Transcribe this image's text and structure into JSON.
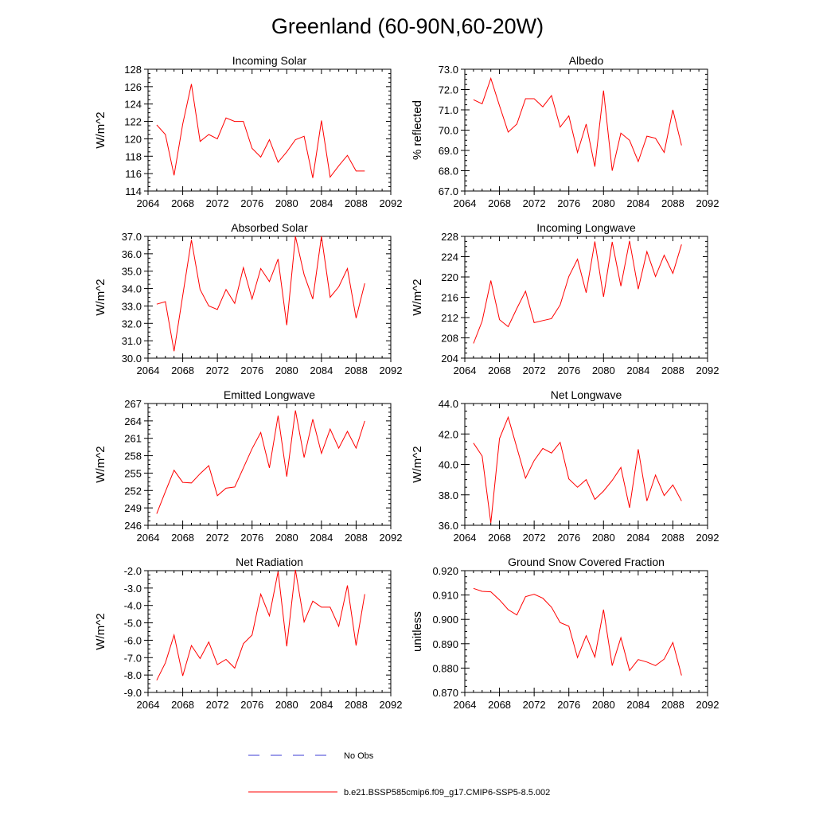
{
  "title": "Greenland (60-90N,60-20W)",
  "legend": {
    "obs_label": "No Obs",
    "model_label": "b.e21.BSSP585cmip6.f09_g17.CMIP6-SSP5-8.5.002",
    "obs_color": "#3b3bd6",
    "model_color": "#ff0000"
  },
  "chart_data": [
    {
      "type": "line",
      "title": "Incoming Solar",
      "ylabel": "W/m^2",
      "xlim": [
        2064,
        2092
      ],
      "ylim": [
        114,
        128
      ],
      "xticks": [
        2064,
        2068,
        2072,
        2076,
        2080,
        2084,
        2088,
        2092
      ],
      "yticks": [
        114,
        116,
        118,
        120,
        122,
        124,
        126,
        128
      ],
      "ytick_labels": [
        "114",
        "116",
        "118",
        "120",
        "122",
        "124",
        "126",
        "128"
      ],
      "x": [
        2065,
        2066,
        2067,
        2068,
        2069,
        2070,
        2071,
        2072,
        2073,
        2074,
        2075,
        2076,
        2077,
        2078,
        2079,
        2080,
        2081,
        2082,
        2083,
        2084,
        2085,
        2086,
        2087,
        2088,
        2089
      ],
      "series": [
        {
          "values": [
            121.6,
            120.5,
            115.8,
            121.7,
            126.3,
            119.7,
            120.5,
            120.0,
            122.4,
            122.0,
            122.0,
            118.9,
            117.9,
            119.9,
            117.3,
            118.5,
            119.9,
            120.3,
            115.5,
            122.1,
            115.6,
            116.9,
            118.1,
            116.3,
            116.3
          ]
        }
      ]
    },
    {
      "type": "line",
      "title": "Albedo",
      "ylabel": "% reflected",
      "xlim": [
        2064,
        2092
      ],
      "ylim": [
        67,
        73
      ],
      "xticks": [
        2064,
        2068,
        2072,
        2076,
        2080,
        2084,
        2088,
        2092
      ],
      "yticks": [
        67,
        68,
        69,
        70,
        71,
        72,
        73
      ],
      "ytick_labels": [
        "67.0",
        "68.0",
        "69.0",
        "70.0",
        "71.0",
        "72.0",
        "73.0"
      ],
      "x": [
        2065,
        2066,
        2067,
        2068,
        2069,
        2070,
        2071,
        2072,
        2073,
        2074,
        2075,
        2076,
        2077,
        2078,
        2079,
        2080,
        2081,
        2082,
        2083,
        2084,
        2085,
        2086,
        2087,
        2088,
        2089
      ],
      "series": [
        {
          "values": [
            71.5,
            71.3,
            72.55,
            71.2,
            69.9,
            70.3,
            71.55,
            71.55,
            71.15,
            71.7,
            70.15,
            70.7,
            68.9,
            70.3,
            68.2,
            71.95,
            68.0,
            69.85,
            69.5,
            68.45,
            69.7,
            69.6,
            68.9,
            71.0,
            69.25
          ]
        }
      ]
    },
    {
      "type": "line",
      "title": "Absorbed Solar",
      "ylabel": "W/m^2",
      "xlim": [
        2064,
        2092
      ],
      "ylim": [
        30,
        37
      ],
      "xticks": [
        2064,
        2068,
        2072,
        2076,
        2080,
        2084,
        2088,
        2092
      ],
      "yticks": [
        30,
        31,
        32,
        33,
        34,
        35,
        36,
        37
      ],
      "ytick_labels": [
        "30.0",
        "31.0",
        "32.0",
        "33.0",
        "34.0",
        "35.0",
        "36.0",
        "37.0"
      ],
      "x": [
        2065,
        2066,
        2067,
        2068,
        2069,
        2070,
        2071,
        2072,
        2073,
        2074,
        2075,
        2076,
        2077,
        2078,
        2079,
        2080,
        2081,
        2082,
        2083,
        2084,
        2085,
        2086,
        2087,
        2088,
        2089
      ],
      "series": [
        {
          "values": [
            33.1,
            33.25,
            30.4,
            33.6,
            36.8,
            33.95,
            33.0,
            32.8,
            33.95,
            33.15,
            35.2,
            33.4,
            35.15,
            34.4,
            35.7,
            31.9,
            37.0,
            34.8,
            33.4,
            37.0,
            33.5,
            34.1,
            35.15,
            32.3,
            34.3
          ]
        }
      ]
    },
    {
      "type": "line",
      "title": "Incoming Longwave",
      "ylabel": "W/m^2",
      "xlim": [
        2064,
        2092
      ],
      "ylim": [
        204,
        228
      ],
      "xticks": [
        2064,
        2068,
        2072,
        2076,
        2080,
        2084,
        2088,
        2092
      ],
      "yticks": [
        204,
        208,
        212,
        216,
        220,
        224,
        228
      ],
      "ytick_labels": [
        "204",
        "208",
        "212",
        "216",
        "220",
        "224",
        "228"
      ],
      "x": [
        2065,
        2066,
        2067,
        2068,
        2069,
        2070,
        2071,
        2072,
        2073,
        2074,
        2075,
        2076,
        2077,
        2078,
        2079,
        2080,
        2081,
        2082,
        2083,
        2084,
        2085,
        2086,
        2087,
        2088,
        2089
      ],
      "series": [
        {
          "values": [
            206.9,
            211.3,
            219.3,
            211.6,
            210.2,
            213.8,
            217.2,
            211.0,
            211.4,
            211.8,
            214.5,
            220.1,
            223.5,
            216.9,
            227.0,
            216.1,
            226.9,
            218.2,
            227.1,
            217.6,
            225.0,
            220.1,
            224.3,
            220.7,
            226.4
          ]
        }
      ]
    },
    {
      "type": "line",
      "title": "Emitted Longwave",
      "ylabel": "W/m^2",
      "xlim": [
        2064,
        2092
      ],
      "ylim": [
        246,
        267
      ],
      "xticks": [
        2064,
        2068,
        2072,
        2076,
        2080,
        2084,
        2088,
        2092
      ],
      "yticks": [
        246,
        249,
        252,
        255,
        258,
        261,
        264,
        267
      ],
      "ytick_labels": [
        "246",
        "249",
        "252",
        "255",
        "258",
        "261",
        "264",
        "267"
      ],
      "x": [
        2065,
        2066,
        2067,
        2068,
        2069,
        2070,
        2071,
        2072,
        2073,
        2074,
        2075,
        2076,
        2077,
        2078,
        2079,
        2080,
        2081,
        2082,
        2083,
        2084,
        2085,
        2086,
        2087,
        2088,
        2089
      ],
      "series": [
        {
          "values": [
            248.0,
            251.8,
            255.5,
            253.4,
            253.3,
            254.9,
            256.3,
            251.1,
            252.4,
            252.6,
            255.9,
            259.2,
            262.0,
            255.9,
            264.9,
            254.4,
            265.8,
            257.7,
            264.3,
            258.4,
            262.6,
            259.3,
            262.2,
            259.3,
            264.0
          ]
        }
      ]
    },
    {
      "type": "line",
      "title": "Net Longwave",
      "ylabel": "W/m^2",
      "xlim": [
        2064,
        2092
      ],
      "ylim": [
        36,
        44
      ],
      "xticks": [
        2064,
        2068,
        2072,
        2076,
        2080,
        2084,
        2088,
        2092
      ],
      "yticks": [
        36,
        38,
        40,
        42,
        44
      ],
      "ytick_labels": [
        "36.0",
        "38.0",
        "40.0",
        "42.0",
        "44.0"
      ],
      "x": [
        2065,
        2066,
        2067,
        2068,
        2069,
        2070,
        2071,
        2072,
        2073,
        2074,
        2075,
        2076,
        2077,
        2078,
        2079,
        2080,
        2081,
        2082,
        2083,
        2084,
        2085,
        2086,
        2087,
        2088,
        2089
      ],
      "series": [
        {
          "values": [
            41.4,
            40.55,
            36.15,
            41.7,
            43.1,
            41.1,
            39.1,
            40.25,
            41.05,
            40.75,
            41.45,
            39.05,
            38.5,
            39.0,
            37.7,
            38.25,
            38.95,
            39.8,
            37.15,
            41.0,
            37.6,
            39.3,
            37.95,
            38.65,
            37.6
          ]
        }
      ]
    },
    {
      "type": "line",
      "title": "Net Radiation",
      "ylabel": "W/m^2",
      "xlim": [
        2064,
        2092
      ],
      "ylim": [
        -9,
        -2
      ],
      "xticks": [
        2064,
        2068,
        2072,
        2076,
        2080,
        2084,
        2088,
        2092
      ],
      "yticks": [
        -9,
        -8,
        -7,
        -6,
        -5,
        -4,
        -3,
        -2
      ],
      "ytick_labels": [
        "-9.0",
        "-8.0",
        "-7.0",
        "-6.0",
        "-5.0",
        "-4.0",
        "-3.0",
        "-2.0"
      ],
      "x": [
        2065,
        2066,
        2067,
        2068,
        2069,
        2070,
        2071,
        2072,
        2073,
        2074,
        2075,
        2076,
        2077,
        2078,
        2079,
        2080,
        2081,
        2082,
        2083,
        2084,
        2085,
        2086,
        2087,
        2088,
        2089
      ],
      "series": [
        {
          "values": [
            -8.3,
            -7.3,
            -5.7,
            -8.05,
            -6.3,
            -7.05,
            -6.1,
            -7.4,
            -7.1,
            -7.6,
            -6.2,
            -5.7,
            -3.35,
            -4.6,
            -2.05,
            -6.35,
            -1.95,
            -4.95,
            -3.75,
            -4.1,
            -4.1,
            -5.2,
            -2.85,
            -6.3,
            -3.35
          ]
        }
      ]
    },
    {
      "type": "line",
      "title": "Ground Snow Covered Fraction",
      "ylabel": "unitless",
      "xlim": [
        2064,
        2092
      ],
      "ylim": [
        0.87,
        0.92
      ],
      "xticks": [
        2064,
        2068,
        2072,
        2076,
        2080,
        2084,
        2088,
        2092
      ],
      "yticks": [
        0.87,
        0.88,
        0.89,
        0.9,
        0.91,
        0.92
      ],
      "ytick_labels": [
        "0.870",
        "0.880",
        "0.890",
        "0.900",
        "0.910",
        "0.920"
      ],
      "x": [
        2065,
        2066,
        2067,
        2068,
        2069,
        2070,
        2071,
        2072,
        2073,
        2074,
        2075,
        2076,
        2077,
        2078,
        2079,
        2080,
        2081,
        2082,
        2083,
        2084,
        2085,
        2086,
        2087,
        2088,
        2089
      ],
      "series": [
        {
          "values": [
            0.9127,
            0.9115,
            0.9113,
            0.908,
            0.904,
            0.9018,
            0.9093,
            0.9103,
            0.9087,
            0.905,
            0.8987,
            0.8972,
            0.8843,
            0.8933,
            0.8845,
            0.904,
            0.881,
            0.8925,
            0.879,
            0.8835,
            0.8825,
            0.881,
            0.8837,
            0.8905,
            0.877
          ]
        }
      ]
    }
  ]
}
